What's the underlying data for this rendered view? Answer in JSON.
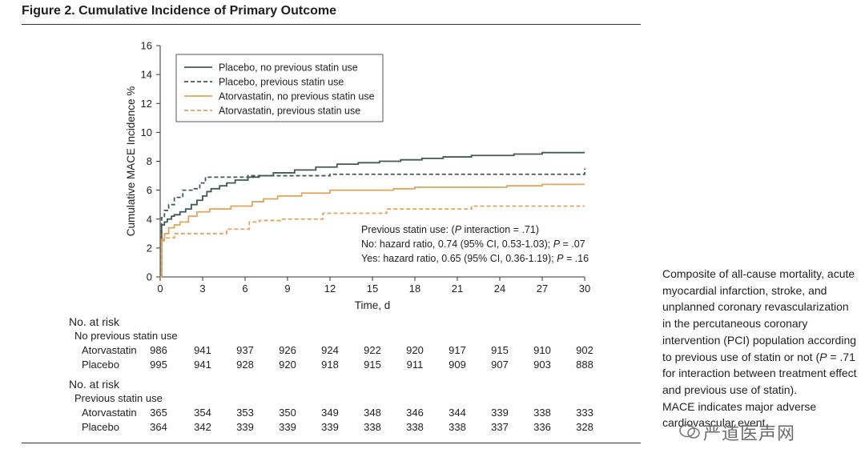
{
  "figure_title": "Figure 2. Cumulative Incidence of Primary Outcome",
  "chart_data": {
    "type": "line",
    "ylabel": "Cumulative MACE Incidence %",
    "xlabel": "Time, d",
    "xlim": [
      0,
      30
    ],
    "ylim": [
      0,
      16
    ],
    "xticks": [
      0,
      3,
      6,
      9,
      12,
      15,
      18,
      21,
      24,
      27,
      30
    ],
    "yticks": [
      0,
      2,
      4,
      6,
      8,
      10,
      12,
      14,
      16
    ],
    "legend_position": "top-left",
    "series": [
      {
        "name": "Placebo, no previous statin use",
        "color": "#3f5a55",
        "dash": "solid",
        "points": [
          [
            0,
            0
          ],
          [
            0.1,
            3.6
          ],
          [
            0.3,
            3.8
          ],
          [
            0.5,
            4.0
          ],
          [
            0.8,
            4.2
          ],
          [
            1.0,
            4.3
          ],
          [
            1.4,
            4.5
          ],
          [
            1.8,
            4.7
          ],
          [
            2.2,
            5.0
          ],
          [
            2.6,
            5.3
          ],
          [
            3.0,
            5.6
          ],
          [
            3.3,
            5.9
          ],
          [
            3.6,
            6.1
          ],
          [
            4.2,
            6.3
          ],
          [
            4.7,
            6.5
          ],
          [
            5.3,
            6.7
          ],
          [
            6.2,
            6.9
          ],
          [
            7.0,
            7.0
          ],
          [
            8.0,
            7.2
          ],
          [
            9.5,
            7.4
          ],
          [
            11.0,
            7.6
          ],
          [
            12.5,
            7.8
          ],
          [
            14.0,
            7.9
          ],
          [
            15.5,
            8.0
          ],
          [
            17.0,
            8.1
          ],
          [
            18.5,
            8.2
          ],
          [
            20.0,
            8.3
          ],
          [
            22.0,
            8.4
          ],
          [
            25.0,
            8.5
          ],
          [
            27.0,
            8.6
          ],
          [
            30.0,
            8.6
          ]
        ]
      },
      {
        "name": "Placebo, previous statin use",
        "color": "#3f5a55",
        "dash": "dashed",
        "points": [
          [
            0,
            0
          ],
          [
            0.1,
            4.1
          ],
          [
            0.3,
            4.6
          ],
          [
            0.6,
            5.0
          ],
          [
            1.0,
            5.5
          ],
          [
            1.6,
            6.0
          ],
          [
            2.4,
            6.1
          ],
          [
            2.8,
            6.5
          ],
          [
            3.2,
            6.9
          ],
          [
            5.0,
            6.9
          ],
          [
            6.2,
            7.0
          ],
          [
            12.0,
            7.1
          ],
          [
            17.0,
            7.1
          ],
          [
            22.0,
            7.1
          ],
          [
            29.5,
            7.1
          ],
          [
            30.0,
            7.5
          ]
        ]
      },
      {
        "name": "Atorvastatin, no previous statin use",
        "color": "#e0a458",
        "dash": "solid",
        "points": [
          [
            0,
            0
          ],
          [
            0.1,
            2.5
          ],
          [
            0.3,
            3.0
          ],
          [
            0.6,
            3.4
          ],
          [
            1.0,
            3.6
          ],
          [
            1.4,
            3.8
          ],
          [
            2.0,
            4.2
          ],
          [
            2.6,
            4.5
          ],
          [
            3.5,
            4.7
          ],
          [
            5.0,
            4.9
          ],
          [
            6.5,
            5.2
          ],
          [
            7.3,
            5.4
          ],
          [
            8.3,
            5.6
          ],
          [
            10.0,
            5.8
          ],
          [
            12.0,
            6.0
          ],
          [
            15.0,
            6.0
          ],
          [
            16.5,
            6.1
          ],
          [
            18.0,
            6.2
          ],
          [
            22.0,
            6.2
          ],
          [
            24.5,
            6.3
          ],
          [
            27.0,
            6.4
          ],
          [
            30.0,
            6.4
          ]
        ]
      },
      {
        "name": "Atorvastatin, previous statin use",
        "color": "#e0a458",
        "dash": "dashed",
        "points": [
          [
            0,
            0
          ],
          [
            0.1,
            2.6
          ],
          [
            0.3,
            2.7
          ],
          [
            1.0,
            3.0
          ],
          [
            2.5,
            3.0
          ],
          [
            3.0,
            3.0
          ],
          [
            4.7,
            3.3
          ],
          [
            6.3,
            3.8
          ],
          [
            7.0,
            3.9
          ],
          [
            8.5,
            4.0
          ],
          [
            11.5,
            4.4
          ],
          [
            12.0,
            4.4
          ],
          [
            16.0,
            4.7
          ],
          [
            22.0,
            4.9
          ],
          [
            30.0,
            4.9
          ]
        ]
      }
    ],
    "annotation": {
      "line1_prefix": "Previous statin use: (",
      "line1_p": "P",
      "line1_suffix": " interaction = .71)",
      "line2": "No: hazard ratio, 0.74 (95% CI, 0.53-1.03); ",
      "line2_p": "P",
      "line2_suffix": " = .07",
      "line3": "Yes: hazard ratio, 0.65 (95% CI, 0.36-1.19); ",
      "line3_p": "P",
      "line3_suffix": " = .16"
    }
  },
  "risk_table": {
    "header1": "No. at risk",
    "group1_label": "No previous statin use",
    "group1": [
      {
        "label": "Atorvastatin",
        "values": [
          986,
          941,
          937,
          926,
          924,
          922,
          920,
          917,
          915,
          910,
          902
        ]
      },
      {
        "label": "Placebo",
        "values": [
          995,
          941,
          928,
          920,
          918,
          915,
          911,
          909,
          907,
          903,
          888
        ]
      }
    ],
    "header2": "No. at risk",
    "group2_label": "Previous statin use",
    "group2": [
      {
        "label": "Atorvastatin",
        "values": [
          365,
          354,
          353,
          350,
          349,
          348,
          346,
          344,
          339,
          338,
          333
        ]
      },
      {
        "label": "Placebo",
        "values": [
          364,
          342,
          339,
          339,
          339,
          338,
          338,
          338,
          337,
          336,
          328
        ]
      }
    ]
  },
  "caption": {
    "text_a": "Composite of all-cause mortality, acute myocardial infarction, stroke, and unplanned coronary revascularization in the percutaneous coronary intervention (PCI) population according to previous use of statin or not (",
    "text_p": "P",
    "text_b": " = .71 for interaction between treatment effect and previous use of statin).",
    "text_c": "MACE indicates major adverse cardiovascular event."
  },
  "watermark": "严道医声网"
}
